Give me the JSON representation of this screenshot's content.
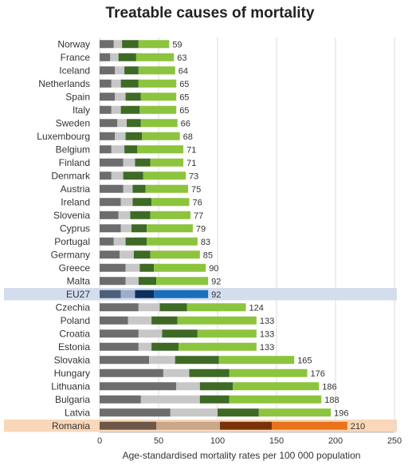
{
  "chart_data": {
    "type": "bar",
    "orientation": "horizontal",
    "stacked": true,
    "title": "Treatable causes of mortality",
    "xlabel": "Age-standardised mortality rates per 100 000 population",
    "xlim": [
      0,
      250
    ],
    "xticks": [
      "0",
      "50",
      "100",
      "150",
      "200",
      "250"
    ],
    "grid": true,
    "categories": [
      "Norway",
      "France",
      "Iceland",
      "Netherlands",
      "Spain",
      "Italy",
      "Sweden",
      "Luxembourg",
      "Belgium",
      "Finland",
      "Denmark",
      "Austria",
      "Ireland",
      "Slovenia",
      "Cyprus",
      "Portugal",
      "Germany",
      "Greece",
      "Malta",
      "EU27",
      "Czechia",
      "Poland",
      "Croatia",
      "Estonia",
      "Slovakia",
      "Hungary",
      "Lithuania",
      "Bulgaria",
      "Latvia",
      "Romania"
    ],
    "totals": [
      59,
      63,
      64,
      65,
      65,
      65,
      66,
      68,
      71,
      71,
      73,
      75,
      76,
      77,
      79,
      83,
      85,
      90,
      92,
      92,
      124,
      133,
      133,
      133,
      165,
      176,
      186,
      188,
      196,
      210
    ],
    "series": [
      {
        "values": [
          12,
          9,
          13,
          10,
          13,
          10,
          15,
          13,
          10,
          20,
          10,
          20,
          18,
          16,
          18,
          12,
          17,
          22,
          22,
          18,
          33,
          24,
          33,
          33,
          42,
          54,
          65,
          35,
          60,
          48
        ]
      },
      {
        "values": [
          7,
          7,
          8,
          8,
          9,
          8,
          8,
          9,
          11,
          10,
          10,
          8,
          10,
          10,
          9,
          10,
          12,
          12,
          11,
          12,
          18,
          20,
          20,
          11,
          22,
          22,
          20,
          50,
          40,
          54
        ]
      },
      {
        "values": [
          14,
          15,
          12,
          15,
          13,
          16,
          12,
          14,
          11,
          13,
          17,
          11,
          16,
          17,
          13,
          18,
          14,
          12,
          15,
          16,
          23,
          22,
          30,
          23,
          37,
          34,
          28,
          25,
          35,
          44
        ]
      },
      {
        "values": [
          26,
          32,
          31,
          32,
          30,
          31,
          31,
          32,
          39,
          28,
          36,
          36,
          32,
          34,
          39,
          43,
          42,
          44,
          44,
          46,
          50,
          67,
          50,
          66,
          64,
          66,
          73,
          78,
          61,
          64
        ]
      }
    ],
    "highlighted": {
      "EU27": "#1a6fba",
      "Romania": "#e8731a"
    },
    "colors": {
      "normal": [
        "#6d6d6d",
        "#c7c7c7",
        "#3e6a25",
        "#8cc43e"
      ],
      "eu27": [
        "#4d5f7a",
        "#9aaecb",
        "#0c2f5c",
        "#1a6fba"
      ],
      "romania": [
        "#6b5848",
        "#c9a788",
        "#7a3208",
        "#e8731a"
      ],
      "eu27_band": "#d3ddee",
      "romania_band": "#f9d7b8",
      "grid": "#dddddd",
      "text": "#333333"
    }
  }
}
